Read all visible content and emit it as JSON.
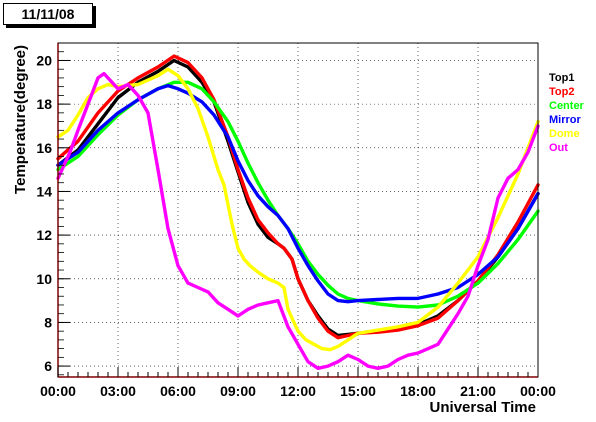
{
  "date_label": "11/11/08",
  "chart_data": {
    "type": "scatter",
    "title": "",
    "xlabel": "Universal Time",
    "ylabel": "Temperature(degree)",
    "xlim": [
      0,
      24
    ],
    "ylim": [
      5.5,
      20.8
    ],
    "x_ticks": [
      {
        "value": 0,
        "label": "00:00"
      },
      {
        "value": 3,
        "label": "03:00"
      },
      {
        "value": 6,
        "label": "06:00"
      },
      {
        "value": 9,
        "label": "09:00"
      },
      {
        "value": 12,
        "label": "12:00"
      },
      {
        "value": 15,
        "label": "15:00"
      },
      {
        "value": 18,
        "label": "18:00"
      },
      {
        "value": 21,
        "label": "21:00"
      },
      {
        "value": 24,
        "label": "00:00"
      }
    ],
    "y_ticks": [
      6,
      8,
      10,
      12,
      14,
      16,
      18,
      20
    ],
    "grid": true,
    "legend_position": "right",
    "series": [
      {
        "name": "Top1",
        "color": "#000000",
        "points": [
          [
            0,
            15.2
          ],
          [
            1,
            15.9
          ],
          [
            2,
            17.1
          ],
          [
            3,
            18.3
          ],
          [
            4,
            19.0
          ],
          [
            5,
            19.5
          ],
          [
            5.8,
            20.0
          ],
          [
            6.5,
            19.7
          ],
          [
            7.2,
            19.0
          ],
          [
            7.8,
            18.1
          ],
          [
            8.5,
            16.3
          ],
          [
            9.0,
            14.9
          ],
          [
            9.5,
            13.5
          ],
          [
            10.0,
            12.5
          ],
          [
            10.5,
            11.9
          ],
          [
            11.0,
            11.6
          ],
          [
            11.3,
            11.4
          ],
          [
            11.7,
            10.9
          ],
          [
            12.0,
            10.0
          ],
          [
            12.5,
            9.0
          ],
          [
            13.0,
            8.3
          ],
          [
            13.5,
            7.7
          ],
          [
            14.0,
            7.4
          ],
          [
            14.5,
            7.45
          ],
          [
            15.0,
            7.5
          ],
          [
            16.0,
            7.6
          ],
          [
            17.0,
            7.7
          ],
          [
            18.0,
            7.9
          ],
          [
            19.0,
            8.3
          ],
          [
            20.0,
            9.0
          ],
          [
            21.0,
            9.9
          ],
          [
            22.0,
            11.0
          ],
          [
            23.0,
            12.3
          ],
          [
            24.0,
            13.9
          ]
        ]
      },
      {
        "name": "Top2",
        "color": "#ff0000",
        "points": [
          [
            0,
            15.5
          ],
          [
            1,
            16.3
          ],
          [
            2,
            17.6
          ],
          [
            3,
            18.6
          ],
          [
            4,
            19.2
          ],
          [
            5,
            19.7
          ],
          [
            5.8,
            20.2
          ],
          [
            6.5,
            19.9
          ],
          [
            7.2,
            19.2
          ],
          [
            7.8,
            18.2
          ],
          [
            8.5,
            16.5
          ],
          [
            9.0,
            15.0
          ],
          [
            9.5,
            13.7
          ],
          [
            10.0,
            12.7
          ],
          [
            10.5,
            12.1
          ],
          [
            11.0,
            11.6
          ],
          [
            11.3,
            11.4
          ],
          [
            11.7,
            10.9
          ],
          [
            12.0,
            10.0
          ],
          [
            12.5,
            9.0
          ],
          [
            13.0,
            8.2
          ],
          [
            13.5,
            7.6
          ],
          [
            14.0,
            7.3
          ],
          [
            14.5,
            7.4
          ],
          [
            15.0,
            7.5
          ],
          [
            16.0,
            7.55
          ],
          [
            17.0,
            7.65
          ],
          [
            18.0,
            7.85
          ],
          [
            19.0,
            8.2
          ],
          [
            20.0,
            9.0
          ],
          [
            21.0,
            9.9
          ],
          [
            22.0,
            11.1
          ],
          [
            23.0,
            12.6
          ],
          [
            24.0,
            14.3
          ]
        ]
      },
      {
        "name": "Center",
        "color": "#00ff00",
        "points": [
          [
            0,
            15.0
          ],
          [
            1,
            15.6
          ],
          [
            2,
            16.6
          ],
          [
            3,
            17.5
          ],
          [
            4,
            18.2
          ],
          [
            5,
            18.7
          ],
          [
            5.8,
            19.0
          ],
          [
            6.5,
            19.0
          ],
          [
            7.2,
            18.7
          ],
          [
            7.8,
            18.1
          ],
          [
            8.5,
            17.2
          ],
          [
            9.0,
            16.3
          ],
          [
            9.5,
            15.3
          ],
          [
            10.0,
            14.4
          ],
          [
            10.5,
            13.6
          ],
          [
            11.0,
            12.9
          ],
          [
            11.5,
            12.3
          ],
          [
            12.0,
            11.6
          ],
          [
            12.5,
            10.8
          ],
          [
            13.0,
            10.2
          ],
          [
            13.5,
            9.7
          ],
          [
            14.0,
            9.3
          ],
          [
            14.5,
            9.1
          ],
          [
            15.0,
            9.0
          ],
          [
            16.0,
            8.85
          ],
          [
            17.0,
            8.75
          ],
          [
            18.0,
            8.7
          ],
          [
            19.0,
            8.8
          ],
          [
            20.0,
            9.2
          ],
          [
            21.0,
            9.8
          ],
          [
            22.0,
            10.7
          ],
          [
            23.0,
            11.8
          ],
          [
            24.0,
            13.1
          ]
        ]
      },
      {
        "name": "Mirror",
        "color": "#0000ff",
        "points": [
          [
            0,
            15.2
          ],
          [
            1,
            15.8
          ],
          [
            2,
            16.8
          ],
          [
            3,
            17.6
          ],
          [
            4,
            18.2
          ],
          [
            5,
            18.7
          ],
          [
            5.5,
            18.85
          ],
          [
            6.0,
            18.7
          ],
          [
            6.5,
            18.5
          ],
          [
            7.2,
            18.1
          ],
          [
            7.8,
            17.5
          ],
          [
            8.5,
            16.5
          ],
          [
            9.0,
            15.4
          ],
          [
            9.5,
            14.5
          ],
          [
            10.0,
            13.8
          ],
          [
            10.5,
            13.3
          ],
          [
            11.0,
            12.9
          ],
          [
            11.5,
            12.3
          ],
          [
            12.0,
            11.4
          ],
          [
            12.5,
            10.6
          ],
          [
            13.0,
            9.9
          ],
          [
            13.5,
            9.3
          ],
          [
            14.0,
            9.0
          ],
          [
            14.5,
            8.95
          ],
          [
            15.0,
            9.0
          ],
          [
            16.0,
            9.05
          ],
          [
            17.0,
            9.1
          ],
          [
            18.0,
            9.1
          ],
          [
            19.0,
            9.3
          ],
          [
            20.0,
            9.6
          ],
          [
            21.0,
            10.2
          ],
          [
            22.0,
            11.0
          ],
          [
            23.0,
            12.3
          ],
          [
            24.0,
            13.9
          ]
        ]
      },
      {
        "name": "Dome",
        "color": "#ffff00",
        "points": [
          [
            0,
            16.5
          ],
          [
            0.5,
            16.8
          ],
          [
            1,
            17.5
          ],
          [
            1.5,
            18.3
          ],
          [
            2,
            18.7
          ],
          [
            2.5,
            18.9
          ],
          [
            3,
            18.8
          ],
          [
            4,
            18.9
          ],
          [
            5,
            19.3
          ],
          [
            5.5,
            19.6
          ],
          [
            6.0,
            19.3
          ],
          [
            6.5,
            18.7
          ],
          [
            7.0,
            17.8
          ],
          [
            7.5,
            16.5
          ],
          [
            8.0,
            15.0
          ],
          [
            8.3,
            14.3
          ],
          [
            8.7,
            12.5
          ],
          [
            9.0,
            11.4
          ],
          [
            9.3,
            10.9
          ],
          [
            9.6,
            10.6
          ],
          [
            10.0,
            10.3
          ],
          [
            10.5,
            10.0
          ],
          [
            11.0,
            9.8
          ],
          [
            11.3,
            9.6
          ],
          [
            11.5,
            8.6
          ],
          [
            11.8,
            8.0
          ],
          [
            12.0,
            7.6
          ],
          [
            12.4,
            7.2
          ],
          [
            12.8,
            7.0
          ],
          [
            13.2,
            6.8
          ],
          [
            13.6,
            6.75
          ],
          [
            14.0,
            6.9
          ],
          [
            14.5,
            7.2
          ],
          [
            15.0,
            7.5
          ],
          [
            16.0,
            7.65
          ],
          [
            17.0,
            7.8
          ],
          [
            18.0,
            8.0
          ],
          [
            19.0,
            8.7
          ],
          [
            20.0,
            9.8
          ],
          [
            21.0,
            11.0
          ],
          [
            22.0,
            12.8
          ],
          [
            23.0,
            14.8
          ],
          [
            24.0,
            17.2
          ]
        ]
      },
      {
        "name": "Out",
        "color": "#ff00ff",
        "points": [
          [
            0,
            14.6
          ],
          [
            0.3,
            15.2
          ],
          [
            0.6,
            15.8
          ],
          [
            1.0,
            16.8
          ],
          [
            1.5,
            18.0
          ],
          [
            2.0,
            19.2
          ],
          [
            2.3,
            19.4
          ],
          [
            2.6,
            19.1
          ],
          [
            3.0,
            18.7
          ],
          [
            3.5,
            18.9
          ],
          [
            4.0,
            18.4
          ],
          [
            4.5,
            17.6
          ],
          [
            5.0,
            15.0
          ],
          [
            5.5,
            12.3
          ],
          [
            6.0,
            10.6
          ],
          [
            6.5,
            9.8
          ],
          [
            7.0,
            9.6
          ],
          [
            7.5,
            9.4
          ],
          [
            8.0,
            8.9
          ],
          [
            8.5,
            8.6
          ],
          [
            9.0,
            8.3
          ],
          [
            9.5,
            8.6
          ],
          [
            10.0,
            8.8
          ],
          [
            10.5,
            8.9
          ],
          [
            11.0,
            9.0
          ],
          [
            11.5,
            7.8
          ],
          [
            12.0,
            7.0
          ],
          [
            12.5,
            6.2
          ],
          [
            13.0,
            5.9
          ],
          [
            13.5,
            6.0
          ],
          [
            14.0,
            6.2
          ],
          [
            14.5,
            6.5
          ],
          [
            15.0,
            6.3
          ],
          [
            15.5,
            6.0
          ],
          [
            16.0,
            5.9
          ],
          [
            16.5,
            6.0
          ],
          [
            17.0,
            6.3
          ],
          [
            17.5,
            6.5
          ],
          [
            18.0,
            6.6
          ],
          [
            19.0,
            7.0
          ],
          [
            20.0,
            8.4
          ],
          [
            20.5,
            9.2
          ],
          [
            21.0,
            10.6
          ],
          [
            21.5,
            11.8
          ],
          [
            22.0,
            13.7
          ],
          [
            22.5,
            14.6
          ],
          [
            23.0,
            15.0
          ],
          [
            23.5,
            15.8
          ],
          [
            24.0,
            17.0
          ]
        ]
      }
    ]
  }
}
